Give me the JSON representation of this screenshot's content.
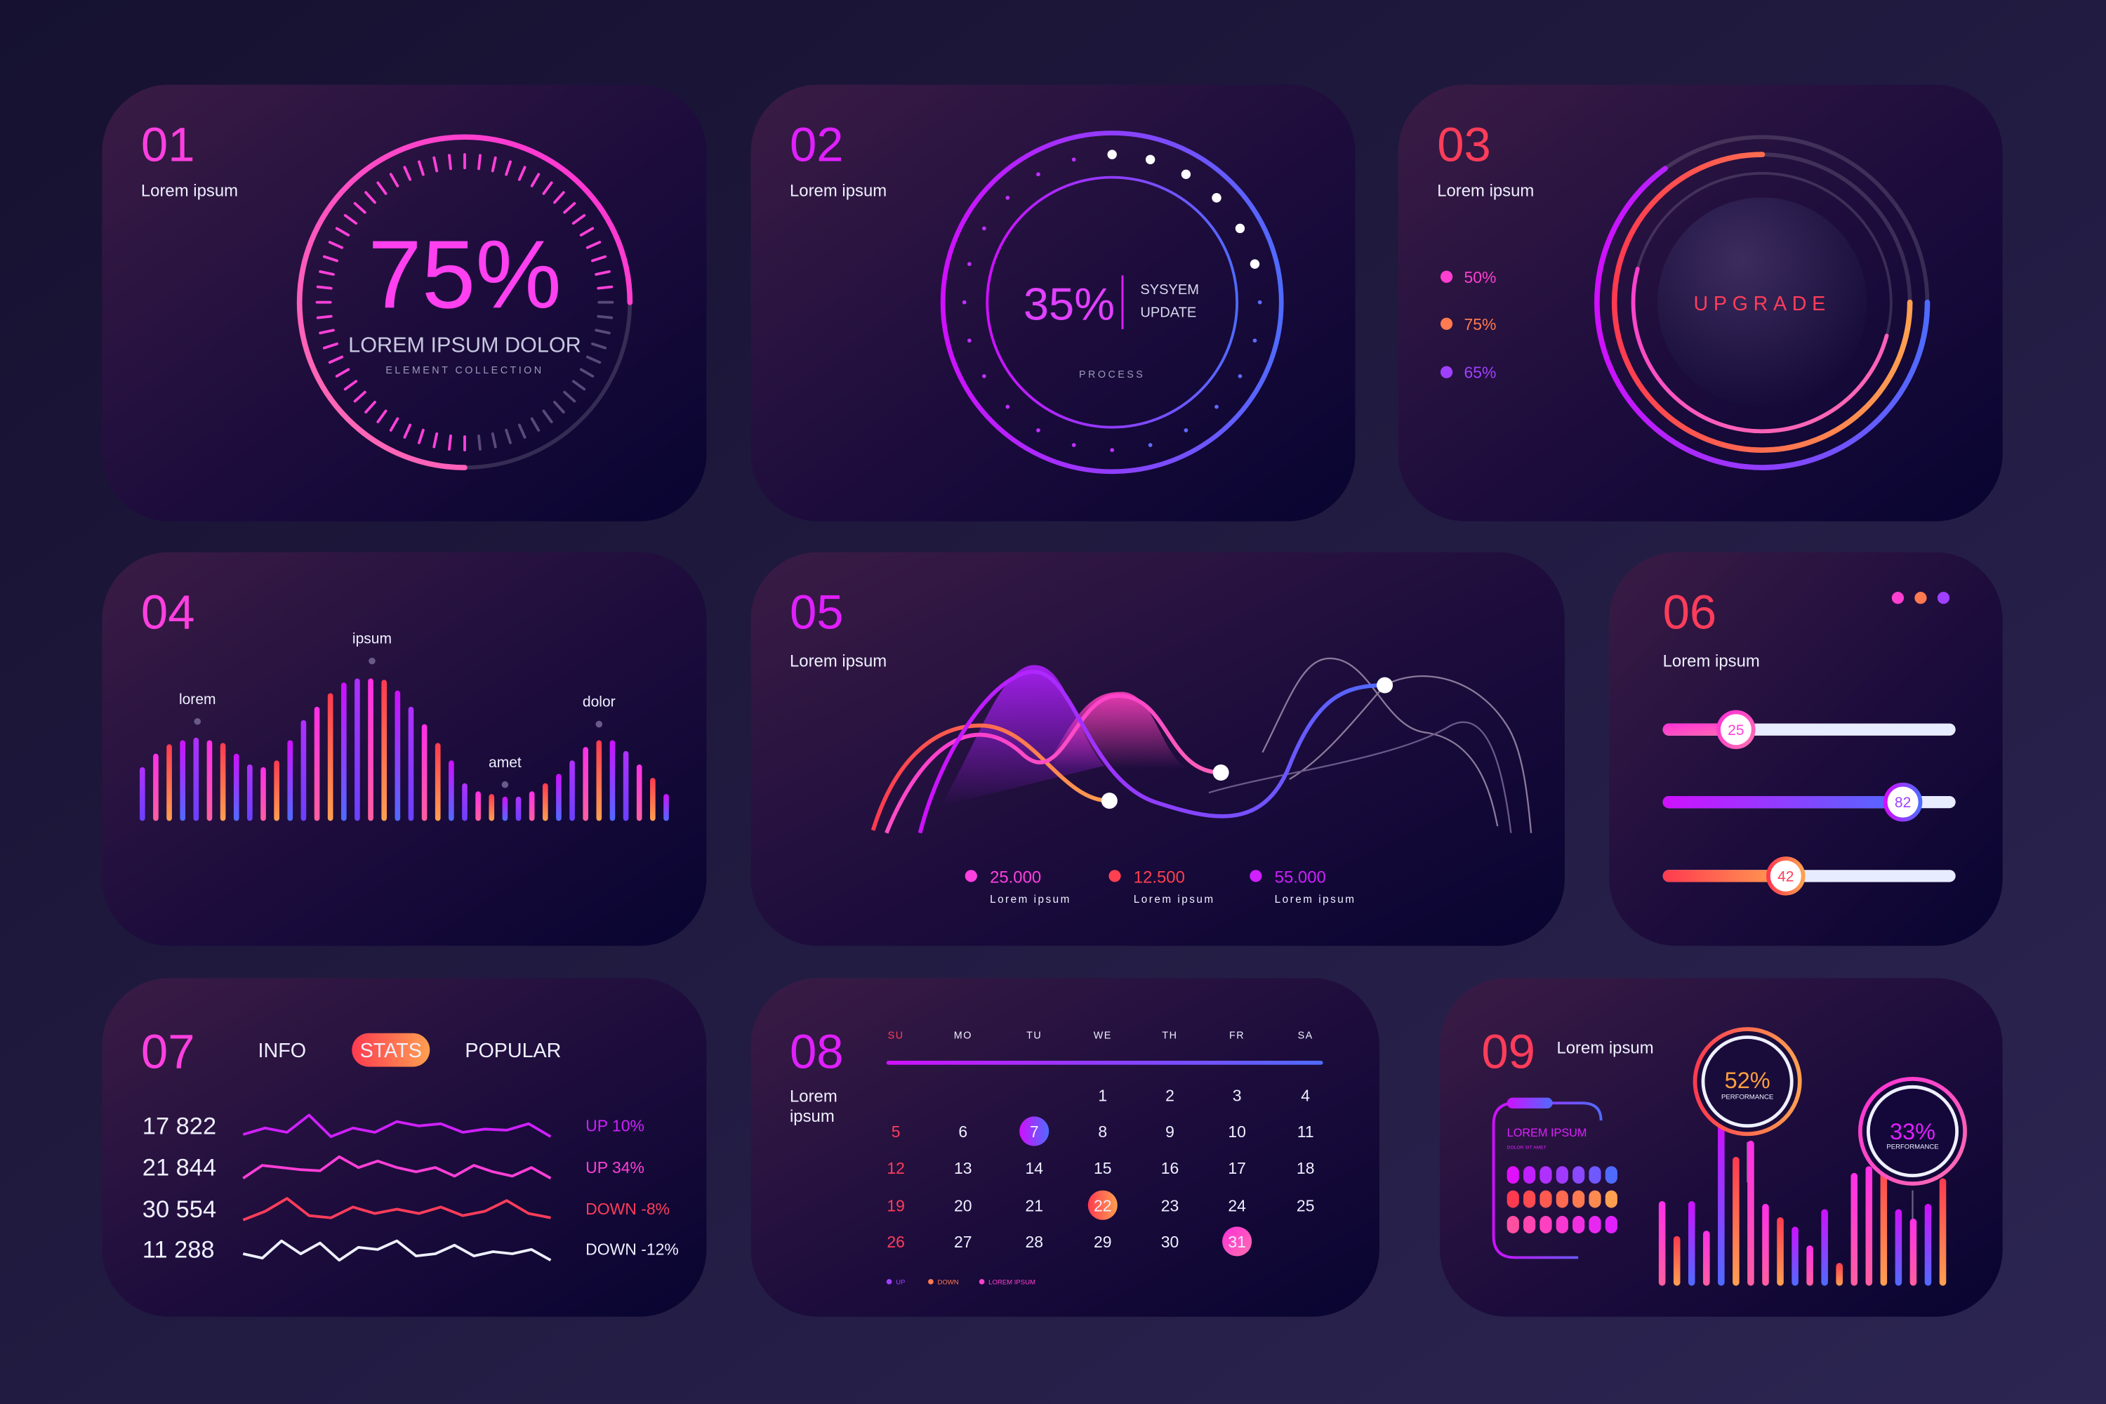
{
  "colors": {
    "magenta": "#e020ff",
    "pink": "#ff3fd8",
    "red": "#ff3d5a",
    "orange": "#ffa04a",
    "blue": "#4f6bff",
    "white": "#eef0ff"
  },
  "p1": {
    "number": "01",
    "subtitle": "Lorem ipsum",
    "percent_text": "75%",
    "gauge_fraction": 0.75,
    "title": "LOREM IPSUM DOLOR",
    "caption": "ELEMENT COLLECTION"
  },
  "p2": {
    "number": "02",
    "subtitle": "Lorem ipsum",
    "percent_text": "35%",
    "status_line1": "SYSYEM",
    "status_line2": "UPDATE",
    "caption": "PROCESS",
    "dot_count": 24,
    "highlighted_dots": 6
  },
  "p3": {
    "number": "03",
    "subtitle": "Lorem ipsum",
    "button": "UPGRADE",
    "legend": [
      {
        "label": "50%",
        "value": 0.5,
        "color": "#ff3fd0",
        "icon": "dot-icon"
      },
      {
        "label": "75%",
        "value": 0.75,
        "color": "#ff7a50",
        "icon": "dot-icon"
      },
      {
        "label": "65%",
        "value": 0.65,
        "color": "#a040ff",
        "icon": "dot-icon"
      }
    ]
  },
  "p4": {
    "number": "04",
    "labels": [
      "lorem",
      "ipsum",
      "amet",
      "dolor"
    ],
    "bars": [
      40,
      50,
      57,
      60,
      62,
      60,
      58,
      50,
      42,
      40,
      45,
      60,
      75,
      85,
      95,
      103,
      106,
      106,
      105,
      97,
      85,
      72,
      58,
      45,
      28,
      22,
      20,
      18,
      18,
      22,
      28,
      35,
      45,
      55,
      60,
      60,
      52,
      42,
      32,
      20
    ]
  },
  "p5": {
    "number": "05",
    "subtitle": "Lorem ipsum",
    "legend": [
      {
        "value": "25.000",
        "label": "Lorem ipsum",
        "color": "#ff40e0"
      },
      {
        "value": "12.500",
        "label": "Lorem ipsum",
        "color": "#ff4050"
      },
      {
        "value": "55.000",
        "label": "Lorem ipsum",
        "color": "#d020ff"
      }
    ]
  },
  "p6": {
    "number": "06",
    "subtitle": "Lorem ipsum",
    "menu_dots": [
      "#ff3fd0",
      "#ff7a50",
      "#a040ff"
    ],
    "sliders": [
      {
        "value": 25
      },
      {
        "value": 82
      },
      {
        "value": 42
      }
    ]
  },
  "p7": {
    "number": "07",
    "tabs": [
      "INFO",
      "STATS",
      "POPULAR"
    ],
    "active_tab": "STATS",
    "rows": [
      {
        "value": "17 822",
        "change": "UP 10%",
        "color": "#d020ff",
        "series": [
          1,
          4,
          2,
          10,
          0,
          4,
          2,
          7,
          5,
          6,
          2,
          3.5,
          3,
          6,
          0
        ]
      },
      {
        "value": "21 844",
        "change": "UP 34%",
        "color": "#ff3fd8",
        "series": [
          0,
          6,
          5,
          4,
          3.5,
          10,
          5,
          8,
          5,
          3,
          5,
          1,
          6,
          3,
          1,
          5,
          0
        ]
      },
      {
        "value": "30 554",
        "change": "DOWN -8%",
        "color": "#ff3d5a",
        "series": [
          0,
          4,
          10,
          2,
          1,
          6,
          3,
          5,
          3,
          6,
          2,
          4,
          9,
          3,
          1
        ]
      },
      {
        "value": "11 288",
        "change": "DOWN -12%",
        "color": "#eef0ff",
        "series": [
          3,
          1,
          9,
          3,
          8,
          0,
          6,
          5,
          9,
          2,
          3,
          7,
          2,
          4,
          3,
          5,
          0
        ]
      }
    ]
  },
  "p8": {
    "number": "08",
    "subtitle_line1": "Lorem",
    "subtitle_line2": "ipsum",
    "weekdays": [
      "SU",
      "MO",
      "TU",
      "WE",
      "TH",
      "FR",
      "SA"
    ],
    "days_in_month": 31,
    "first_weekday_index": 3,
    "highlights": [
      {
        "day": 7,
        "type": "up"
      },
      {
        "day": 22,
        "type": "down"
      },
      {
        "day": 31,
        "type": "lorem"
      }
    ],
    "legend": [
      {
        "label": "UP",
        "color": "#a040ff"
      },
      {
        "label": "DOWN",
        "color": "#ff7a50"
      },
      {
        "label": "LOREM IPSUM",
        "color": "#ff3fd0"
      }
    ]
  },
  "p9": {
    "number": "09",
    "subtitle": "Lorem ipsum",
    "card_title": "LOREM IPSUM",
    "card_caption": "DOLOR SIT AMET",
    "gauges": [
      {
        "percent_text": "52%",
        "label": "PERFORMANCE",
        "color": "#ffa040"
      },
      {
        "percent_text": "33%",
        "label": "PERFORMANCE",
        "color": "#e020ff"
      }
    ],
    "bars": [
      63,
      37,
      63,
      41,
      122,
      96,
      108,
      61,
      51,
      44,
      30,
      57,
      17,
      84,
      89,
      99,
      57,
      50,
      61,
      80
    ]
  }
}
